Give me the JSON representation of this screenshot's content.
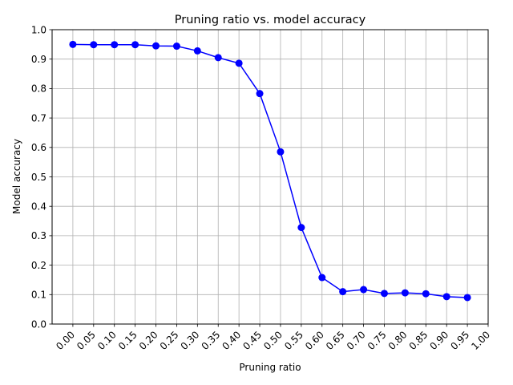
{
  "chart_data": {
    "type": "line",
    "title": "Pruning ratio vs. model accuracy",
    "xlabel": "Pruning ratio",
    "ylabel": "Model accuracy",
    "xlim": [
      -0.05,
      1.0
    ],
    "ylim": [
      0.0,
      1.0
    ],
    "grid": true,
    "x_ticks": [
      "0.00",
      "0.05",
      "0.10",
      "0.15",
      "0.20",
      "0.25",
      "0.30",
      "0.35",
      "0.40",
      "0.45",
      "0.50",
      "0.55",
      "0.60",
      "0.65",
      "0.70",
      "0.75",
      "0.80",
      "0.85",
      "0.90",
      "0.95",
      "1.00"
    ],
    "y_ticks": [
      "0.0",
      "0.1",
      "0.2",
      "0.3",
      "0.4",
      "0.5",
      "0.6",
      "0.7",
      "0.8",
      "0.9",
      "1.0"
    ],
    "series": [
      {
        "color": "#0000ff",
        "x": [
          0.0,
          0.05,
          0.1,
          0.15,
          0.2,
          0.25,
          0.3,
          0.35,
          0.4,
          0.45,
          0.5,
          0.55,
          0.6,
          0.65,
          0.7,
          0.75,
          0.8,
          0.85,
          0.9,
          0.95
        ],
        "y": [
          0.95,
          0.949,
          0.949,
          0.949,
          0.945,
          0.944,
          0.928,
          0.905,
          0.886,
          0.783,
          0.585,
          0.328,
          0.158,
          0.11,
          0.117,
          0.104,
          0.106,
          0.103,
          0.093,
          0.09
        ]
      }
    ]
  }
}
